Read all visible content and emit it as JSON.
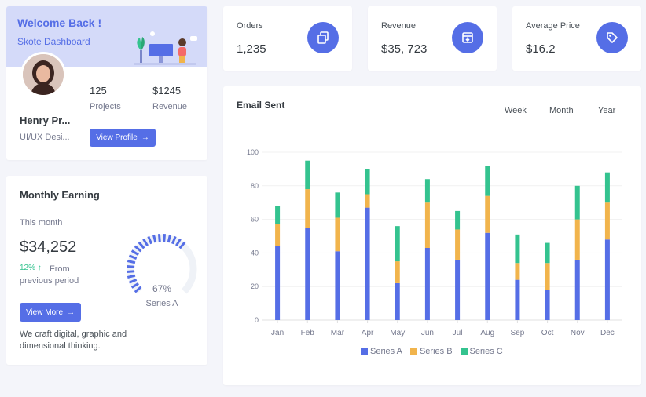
{
  "welcome": {
    "title": "Welcome Back !",
    "subtitle": "Skote Dashboard",
    "name": "Henry Pr...",
    "role": "UI/UX Desi...",
    "projects_value": "125",
    "projects_label": "Projects",
    "revenue_value": "$1245",
    "revenue_label": "Revenue",
    "button_label": "View Profile",
    "button_icon": "arrow-right-icon"
  },
  "monthly": {
    "title": "Monthly Earning",
    "period_label": "This month",
    "value": "$34,252",
    "change": "12% ↑",
    "change_text": "From previous period",
    "gauge_value": 67,
    "gauge_label": "67%",
    "gauge_series": "Series A",
    "button_label": "View More",
    "description": "We craft digital, graphic and dimensional thinking.",
    "accent": "#556ee6"
  },
  "cards": [
    {
      "label": "Orders",
      "value": "1,235",
      "icon": "copy-icon"
    },
    {
      "label": "Revenue",
      "value": "$35, 723",
      "icon": "archive-in-icon"
    },
    {
      "label": "Average Price",
      "value": "$16.2",
      "icon": "tag-icon"
    }
  ],
  "email": {
    "title": "Email Sent",
    "tabs": [
      "Week",
      "Month",
      "Year"
    ]
  },
  "chart_data": {
    "type": "bar",
    "stacked": true,
    "categories": [
      "Jan",
      "Feb",
      "Mar",
      "Apr",
      "May",
      "Jun",
      "Jul",
      "Aug",
      "Sep",
      "Oct",
      "Nov",
      "Dec"
    ],
    "series": [
      {
        "name": "Series A",
        "color": "#556ee6",
        "values": [
          44,
          55,
          41,
          67,
          22,
          43,
          36,
          52,
          24,
          18,
          36,
          48
        ]
      },
      {
        "name": "Series B",
        "color": "#f1b44c",
        "values": [
          13,
          23,
          20,
          8,
          13,
          27,
          18,
          22,
          10,
          16,
          24,
          22
        ]
      },
      {
        "name": "Series C",
        "color": "#34c38f",
        "values": [
          11,
          17,
          15,
          15,
          21,
          14,
          11,
          18,
          17,
          12,
          20,
          18
        ]
      }
    ],
    "yticks": [
      0,
      20,
      40,
      60,
      80,
      100
    ],
    "ylim": [
      0,
      100
    ],
    "legend": "bottom",
    "grid": true
  }
}
